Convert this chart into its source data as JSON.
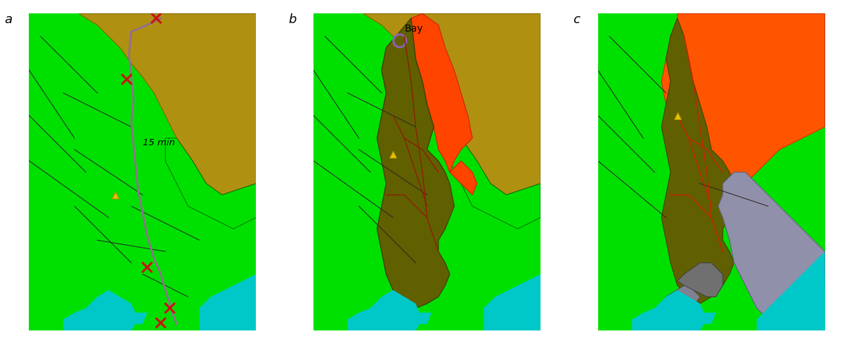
{
  "figure_width": 12.15,
  "figure_height": 4.86,
  "dpi": 100,
  "background_color": "#ffffff",
  "panel_labels": [
    "a",
    "b",
    "c"
  ],
  "panel_label_fontsize": 13,
  "colors": {
    "bright_green": "#00e000",
    "olive_brown": "#b08800",
    "orange_red": "#ff4400",
    "dark_olive": "#606000",
    "cyan_blue": "#00c8c8",
    "gray_purple": "#9090aa",
    "road_dark": "#303030",
    "red_mark": "#cc0000",
    "purple_route": "#907090",
    "orange_light": "#ff7700"
  }
}
